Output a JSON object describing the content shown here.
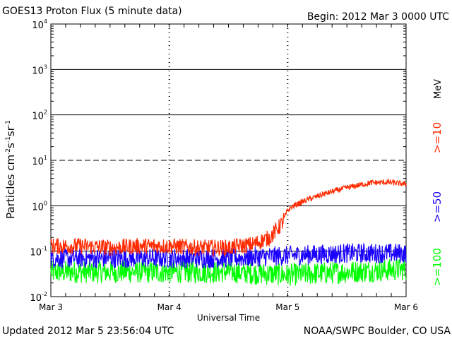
{
  "header": {
    "title": "GOES13 Proton Flux (5 minute data)",
    "begin": "Begin: 2012 Mar 3 0000 UTC"
  },
  "footer": {
    "updated": "Updated 2012 Mar  5 23:56:04 UTC",
    "credit": "NOAA/SWPC Boulder, CO USA"
  },
  "colors": {
    "p10": "#ff2a00",
    "p50": "#1a00ff",
    "p100": "#00ff00",
    "grid": "#000000"
  },
  "chart_data": {
    "type": "line",
    "title": "GOES13 Proton Flux (5 minute data)",
    "xlabel": "Universal Time",
    "ylabel_base": "Particles cm",
    "ylabel_sup1": "-2",
    "ylabel_mid1": "s",
    "ylabel_sup2": "-1",
    "ylabel_mid2": "sr",
    "ylabel_sup3": "-1",
    "yscale": "log",
    "ylim": [
      0.01,
      10000
    ],
    "xlim_days": [
      0,
      3
    ],
    "x_ticks": [
      {
        "day": 0,
        "label": "Mar 3"
      },
      {
        "day": 1,
        "label": "Mar 4"
      },
      {
        "day": 2,
        "label": "Mar 5"
      },
      {
        "day": 3,
        "label": "Mar 6"
      }
    ],
    "y_ticks": [
      {
        "exp": -2,
        "base": "10",
        "sup": "-2"
      },
      {
        "exp": -1,
        "base": "10",
        "sup": "-1"
      },
      {
        "exp": 0,
        "base": "10",
        "sup": "0"
      },
      {
        "exp": 1,
        "base": "10",
        "sup": "1"
      },
      {
        "exp": 2,
        "base": "10",
        "sup": "2"
      },
      {
        "exp": 3,
        "base": "10",
        "sup": "3"
      },
      {
        "exp": 4,
        "base": "10",
        "sup": "4"
      }
    ],
    "right_label": "MeV",
    "series": [
      {
        "name": ">=10",
        "color": "#ff2a00",
        "x_days": [
          0,
          0.25,
          0.5,
          0.75,
          1,
          1.25,
          1.5,
          1.7,
          1.85,
          1.95,
          2.0,
          2.05,
          2.15,
          2.3,
          2.5,
          2.7,
          2.85,
          3.0
        ],
        "y": [
          0.13,
          0.13,
          0.12,
          0.13,
          0.13,
          0.12,
          0.12,
          0.14,
          0.2,
          0.4,
          0.8,
          1.0,
          1.3,
          1.8,
          2.5,
          3.2,
          3.3,
          3.0
        ]
      },
      {
        "name": ">=50",
        "color": "#1a00ff",
        "x_days": [
          0,
          0.5,
          1,
          1.5,
          2,
          2.5,
          3.0
        ],
        "y": [
          0.07,
          0.07,
          0.07,
          0.07,
          0.08,
          0.09,
          0.09
        ]
      },
      {
        "name": ">=100",
        "color": "#00ff00",
        "x_days": [
          0,
          0.5,
          1,
          1.5,
          2,
          2.5,
          3.0
        ],
        "y": [
          0.035,
          0.035,
          0.035,
          0.035,
          0.03,
          0.035,
          0.04
        ]
      }
    ],
    "reference_lines": [
      {
        "value": 10,
        "style": "dashed"
      },
      {
        "value": 0.1,
        "style": "solid"
      }
    ],
    "grid": true
  }
}
